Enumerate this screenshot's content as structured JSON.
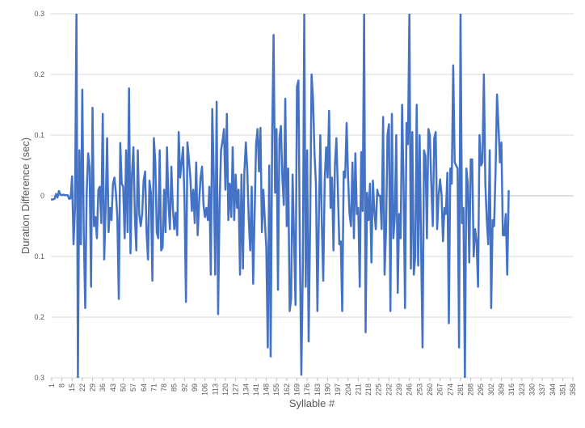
{
  "chart_data": {
    "type": "line",
    "title": "",
    "xlabel": "Syllable #",
    "ylabel": "Duration Difference (sec)",
    "y_tick_labels": [
      "0.3",
      "0.2",
      "0.1",
      "0",
      "0.1",
      "0.2",
      "0.3"
    ],
    "y_tick_values": [
      0.3,
      0.2,
      0.1,
      0,
      -0.1,
      -0.2,
      -0.3
    ],
    "ylim": [
      -0.3,
      0.3
    ],
    "x_tick_labels": [
      "1",
      "8",
      "15",
      "22",
      "29",
      "36",
      "43",
      "50",
      "57",
      "64",
      "71",
      "78",
      "85",
      "92",
      "99",
      "106",
      "113",
      "120",
      "127",
      "134",
      "141",
      "148",
      "155",
      "162",
      "169",
      "176",
      "183",
      "190",
      "197",
      "204",
      "211",
      "218",
      "225",
      "232",
      "239",
      "246",
      "253",
      "260",
      "267",
      "274",
      "281",
      "288",
      "295",
      "302",
      "309",
      "316",
      "323",
      "330",
      "337",
      "344",
      "351",
      "358"
    ],
    "x_range": [
      1,
      358
    ],
    "grid": "horizontal",
    "legend": "none",
    "series": [
      {
        "color": "#4472c4",
        "x_start": 1,
        "values": [
          -0.006,
          -0.006,
          -0.005,
          0.003,
          -0.003,
          0.008,
          0.002,
          0.001,
          0.002,
          0.001,
          0.001,
          0.001,
          -0.005,
          -0.004,
          0.032,
          -0.08,
          -0.02,
          0.3,
          -0.3,
          0.075,
          -0.08,
          0.175,
          -0.06,
          -0.185,
          0.005,
          0.07,
          0.045,
          -0.15,
          0.145,
          -0.05,
          -0.035,
          -0.07,
          0.01,
          0.015,
          -0.045,
          0.135,
          -0.105,
          -0.02,
          0.095,
          -0.06,
          -0.02,
          -0.04,
          0.02,
          0.03,
          0.005,
          -0.035,
          -0.17,
          0.087,
          0.02,
          0.015,
          -0.07,
          0.075,
          -0.06,
          0.177,
          -0.095,
          0.035,
          0.08,
          -0.035,
          -0.09,
          0.075,
          -0.03,
          -0.05,
          -0.03,
          0.025,
          0.04,
          -0.06,
          -0.105,
          0.025,
          0.005,
          -0.14,
          0.095,
          0.055,
          -0.06,
          -0.07,
          0.075,
          -0.09,
          -0.085,
          0.01,
          -0.06,
          0.08,
          -0.01,
          -0.055,
          0.048,
          -0.02,
          -0.055,
          -0.028,
          -0.065,
          0.105,
          0.03,
          0.055,
          0.08,
          -0.01,
          -0.175,
          0.088,
          0.06,
          0.03,
          -0.025,
          0.01,
          -0.045,
          0.055,
          -0.065,
          -0.01,
          0.03,
          0.048,
          -0.015,
          -0.035,
          -0.02,
          -0.04,
          0.015,
          -0.13,
          0.143,
          0.035,
          -0.13,
          0.155,
          -0.195,
          -0.015,
          0.075,
          0.09,
          0.11,
          0.01,
          0.135,
          -0.04,
          0.02,
          -0.035,
          0.08,
          -0.04,
          0.035,
          -0.02,
          0.01,
          -0.13,
          0.035,
          -0.12,
          0.04,
          0.088,
          0.04,
          -0.04,
          -0.09,
          0.015,
          -0.145,
          -0.03,
          0.085,
          0.11,
          0.04,
          0.112,
          -0.06,
          0.01,
          -0.04,
          -0.085,
          -0.25,
          0.05,
          -0.265,
          0.095,
          0.265,
          0.005,
          0.11,
          -0.155,
          0.095,
          0.115,
          0.03,
          -0.015,
          0.16,
          -0.05,
          0.045,
          -0.19,
          -0.17,
          0.035,
          -0.07,
          -0.18,
          0.18,
          0.19,
          -0.09,
          -0.295,
          -0.12,
          0.3,
          -0.15,
          0.075,
          -0.24,
          -0.05,
          0.2,
          0.16,
          0.07,
          0.02,
          -0.19,
          -0.035,
          0.1,
          -0.045,
          -0.14,
          0.025,
          0.08,
          0.03,
          0.14,
          -0.02,
          0.03,
          -0.09,
          0.05,
          0.095,
          0.01,
          -0.08,
          -0.075,
          -0.19,
          0.04,
          0.03,
          0.12,
          0.03,
          -0.03,
          -0.05,
          0.055,
          -0.07,
          0.07,
          -0.03,
          -0.02,
          -0.15,
          0.072,
          -0.025,
          0.3,
          -0.225,
          0.005,
          -0.04,
          0.02,
          -0.11,
          0.025,
          -0.025,
          -0.055,
          0.01,
          0.0,
          0.0,
          -0.055,
          0.13,
          -0.13,
          -0.055,
          0.1,
          0.118,
          -0.19,
          0.135,
          -0.07,
          -0.035,
          0.1,
          -0.16,
          -0.03,
          -0.07,
          0.15,
          0.02,
          -0.185,
          0.12,
          0.085,
          0.3,
          -0.12,
          0.105,
          -0.13,
          -0.1,
          0.15,
          -0.115,
          0.1,
          -0.08,
          -0.25,
          0.075,
          0.065,
          -0.07,
          0.11,
          0.1,
          0.018,
          -0.05,
          0.095,
          0.105,
          -0.055,
          0.0,
          0.027,
          0.002,
          -0.075,
          -0.02,
          -0.03,
          0.038,
          -0.21,
          0.045,
          0.02,
          0.215,
          0.055,
          0.05,
          0.045,
          -0.25,
          0.3,
          -0.045,
          -0.02,
          -0.3,
          0.045,
          0.02,
          -0.11,
          0.06,
          0.06,
          -0.1,
          -0.055,
          -0.075,
          -0.15,
          0.1,
          0.05,
          0.055,
          0.2,
          0.02,
          -0.04,
          -0.08,
          0.075,
          -0.185,
          -0.04,
          -0.05,
          0.04,
          0.167,
          0.115,
          0.055,
          0.088,
          -0.065,
          -0.065,
          -0.03,
          -0.13,
          0.008
        ]
      }
    ]
  }
}
